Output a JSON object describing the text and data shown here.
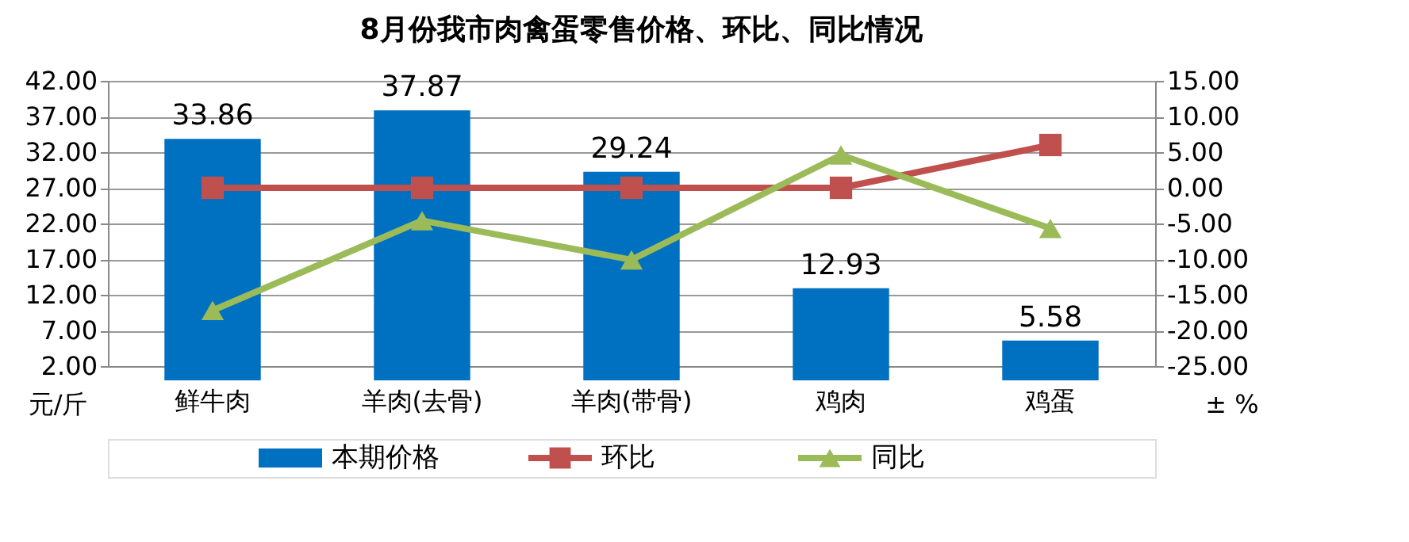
{
  "chart_data": {
    "type": "bar",
    "title": "8月份我市肉禽蛋零售价格、环比、同比情况",
    "categories": [
      "鲜牛肉",
      "羊肉(去骨)",
      "羊肉(带骨)",
      "鸡肉",
      "鸡蛋"
    ],
    "series": [
      {
        "name": "本期价格",
        "type": "bar",
        "color": "#0070c0",
        "values": [
          33.86,
          37.87,
          29.24,
          12.93,
          5.58
        ],
        "value_labels": [
          "33.86",
          "37.87",
          "29.24",
          "12.93",
          "5.58"
        ]
      },
      {
        "name": "环比",
        "type": "line",
        "axis": "y2",
        "marker": "square",
        "color": "#c0504d",
        "values": [
          0,
          0,
          0,
          0,
          6
        ]
      },
      {
        "name": "同比",
        "type": "line",
        "axis": "y2",
        "marker": "triangle",
        "color": "#9bbb59",
        "values": [
          -17.2,
          -4.6,
          -10.1,
          4.6,
          -5.7
        ]
      }
    ],
    "ylabel": "元/斤",
    "y2label": "± %",
    "ylim": [
      2,
      42
    ],
    "yticks": [
      {
        "value": 2,
        "label": "2.00"
      },
      {
        "value": 7,
        "label": "7.00"
      },
      {
        "value": 12,
        "label": "12.00"
      },
      {
        "value": 17,
        "label": "17.00"
      },
      {
        "value": 22,
        "label": "22.00"
      },
      {
        "value": 27,
        "label": "27.00"
      },
      {
        "value": 32,
        "label": "32.00"
      },
      {
        "value": 37,
        "label": "37.00"
      },
      {
        "value": 42,
        "label": "42.00"
      }
    ],
    "y2lim": [
      -25,
      15
    ],
    "y2ticks": [
      {
        "value": -25,
        "label": "-25.00"
      },
      {
        "value": -20,
        "label": "-20.00"
      },
      {
        "value": -15,
        "label": "-15.00"
      },
      {
        "value": -10,
        "label": "-10.00"
      },
      {
        "value": -5,
        "label": "-5.00"
      },
      {
        "value": 0,
        "label": "0.00"
      },
      {
        "value": 5,
        "label": "5.00"
      },
      {
        "value": 10,
        "label": "10.00"
      },
      {
        "value": 15,
        "label": "15.00"
      }
    ],
    "grid": "y",
    "legend": "bottom"
  }
}
